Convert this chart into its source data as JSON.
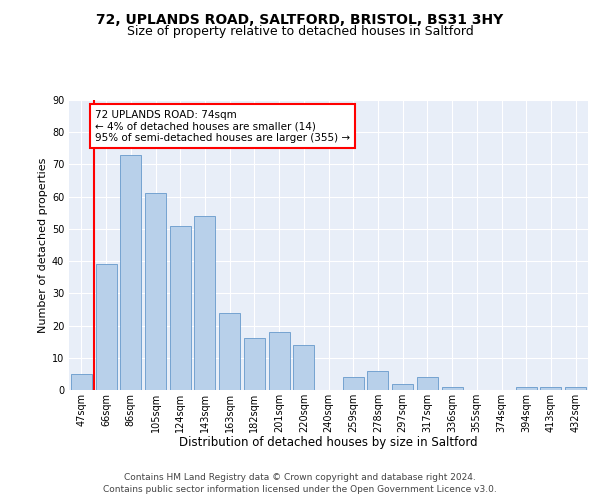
{
  "title1": "72, UPLANDS ROAD, SALTFORD, BRISTOL, BS31 3HY",
  "title2": "Size of property relative to detached houses in Saltford",
  "xlabel": "Distribution of detached houses by size in Saltford",
  "ylabel": "Number of detached properties",
  "categories": [
    "47sqm",
    "66sqm",
    "86sqm",
    "105sqm",
    "124sqm",
    "143sqm",
    "163sqm",
    "182sqm",
    "201sqm",
    "220sqm",
    "240sqm",
    "259sqm",
    "278sqm",
    "297sqm",
    "317sqm",
    "336sqm",
    "355sqm",
    "374sqm",
    "394sqm",
    "413sqm",
    "432sqm"
  ],
  "values": [
    5,
    39,
    73,
    61,
    51,
    54,
    24,
    16,
    18,
    14,
    0,
    4,
    6,
    2,
    4,
    1,
    0,
    0,
    1,
    1,
    1
  ],
  "bar_color": "#b8d0ea",
  "bar_edge_color": "#6699cc",
  "redline_color": "red",
  "annotation_text": "72 UPLANDS ROAD: 74sqm\n← 4% of detached houses are smaller (14)\n95% of semi-detached houses are larger (355) →",
  "annotation_box_color": "white",
  "annotation_box_edge_color": "red",
  "footer1": "Contains HM Land Registry data © Crown copyright and database right 2024.",
  "footer2": "Contains public sector information licensed under the Open Government Licence v3.0.",
  "ylim": [
    0,
    90
  ],
  "yticks": [
    0,
    10,
    20,
    30,
    40,
    50,
    60,
    70,
    80,
    90
  ],
  "background_color": "#e8eef8",
  "grid_color": "white",
  "title1_fontsize": 10,
  "title2_fontsize": 9,
  "xlabel_fontsize": 8.5,
  "ylabel_fontsize": 8,
  "tick_fontsize": 7,
  "annot_fontsize": 7.5,
  "footer_fontsize": 6.5
}
